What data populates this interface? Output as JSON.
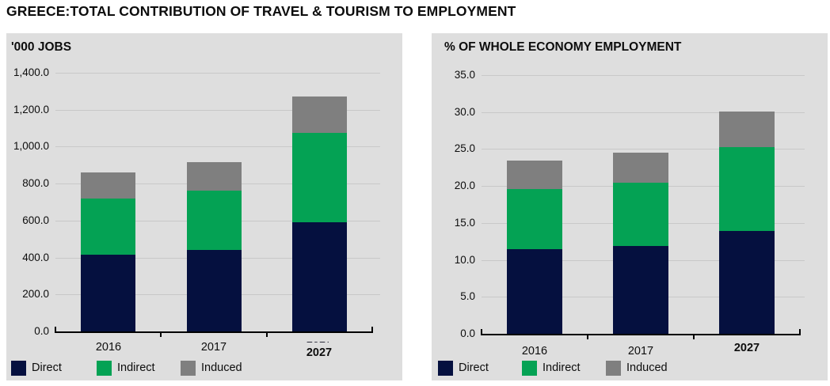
{
  "page_title": "GREECE:TOTAL CONTRIBUTION OF TRAVEL & TOURISM TO EMPLOYMENT",
  "colors": {
    "direct": "#05103f",
    "indirect": "#04a254",
    "induced": "#7f7f7f",
    "panel_bg": "#dedede",
    "gridline": "#c8c8c8",
    "axis": "#000000",
    "text": "#0d0d0d"
  },
  "legend": {
    "items": [
      "Direct",
      "Indirect",
      "Induced"
    ]
  },
  "chart_data": [
    {
      "type": "bar",
      "stacked": true,
      "title": "'000 JOBS",
      "categories": [
        "2016",
        "2017",
        "2027"
      ],
      "bold_categories": [
        "2027"
      ],
      "ghost_label": {
        "category": "2027",
        "text": "2027"
      },
      "series": [
        {
          "name": "Direct",
          "color_key": "direct",
          "values": [
            415,
            440,
            590
          ]
        },
        {
          "name": "Indirect",
          "color_key": "indirect",
          "values": [
            303,
            320,
            483
          ]
        },
        {
          "name": "Induced",
          "color_key": "induced",
          "values": [
            142,
            152,
            198
          ]
        }
      ],
      "stack_totals": [
        860,
        912,
        1271
      ],
      "xlabel": "",
      "ylabel": "'000 jobs",
      "ylim": [
        0,
        1400
      ],
      "ytick_step": 200,
      "ytick_labels": [
        "0.0",
        "200.0",
        "400.0",
        "600.0",
        "800.0",
        "1,000.0",
        "1,200.0",
        "1,400.0"
      ],
      "grid": true,
      "legend_position": "bottom"
    },
    {
      "type": "bar",
      "stacked": true,
      "title": "% OF WHOLE ECONOMY EMPLOYMENT",
      "categories": [
        "2016",
        "2017",
        "2027"
      ],
      "bold_categories": [
        "2027"
      ],
      "series": [
        {
          "name": "Direct",
          "color_key": "direct",
          "values": [
            11.4,
            11.9,
            13.9
          ]
        },
        {
          "name": "Indirect",
          "color_key": "indirect",
          "values": [
            8.1,
            8.6,
            11.3
          ]
        },
        {
          "name": "Induced",
          "color_key": "induced",
          "values": [
            3.9,
            4.1,
            4.8
          ]
        }
      ],
      "stack_totals": [
        23.4,
        24.6,
        30.0
      ],
      "xlabel": "",
      "ylabel": "% of whole economy employment",
      "ylim": [
        0,
        35
      ],
      "ytick_step": 5,
      "ytick_labels": [
        "0.0",
        "5.0",
        "10.0",
        "15.0",
        "20.0",
        "25.0",
        "30.0",
        "35.0"
      ],
      "grid": true,
      "legend_position": "bottom"
    }
  ]
}
